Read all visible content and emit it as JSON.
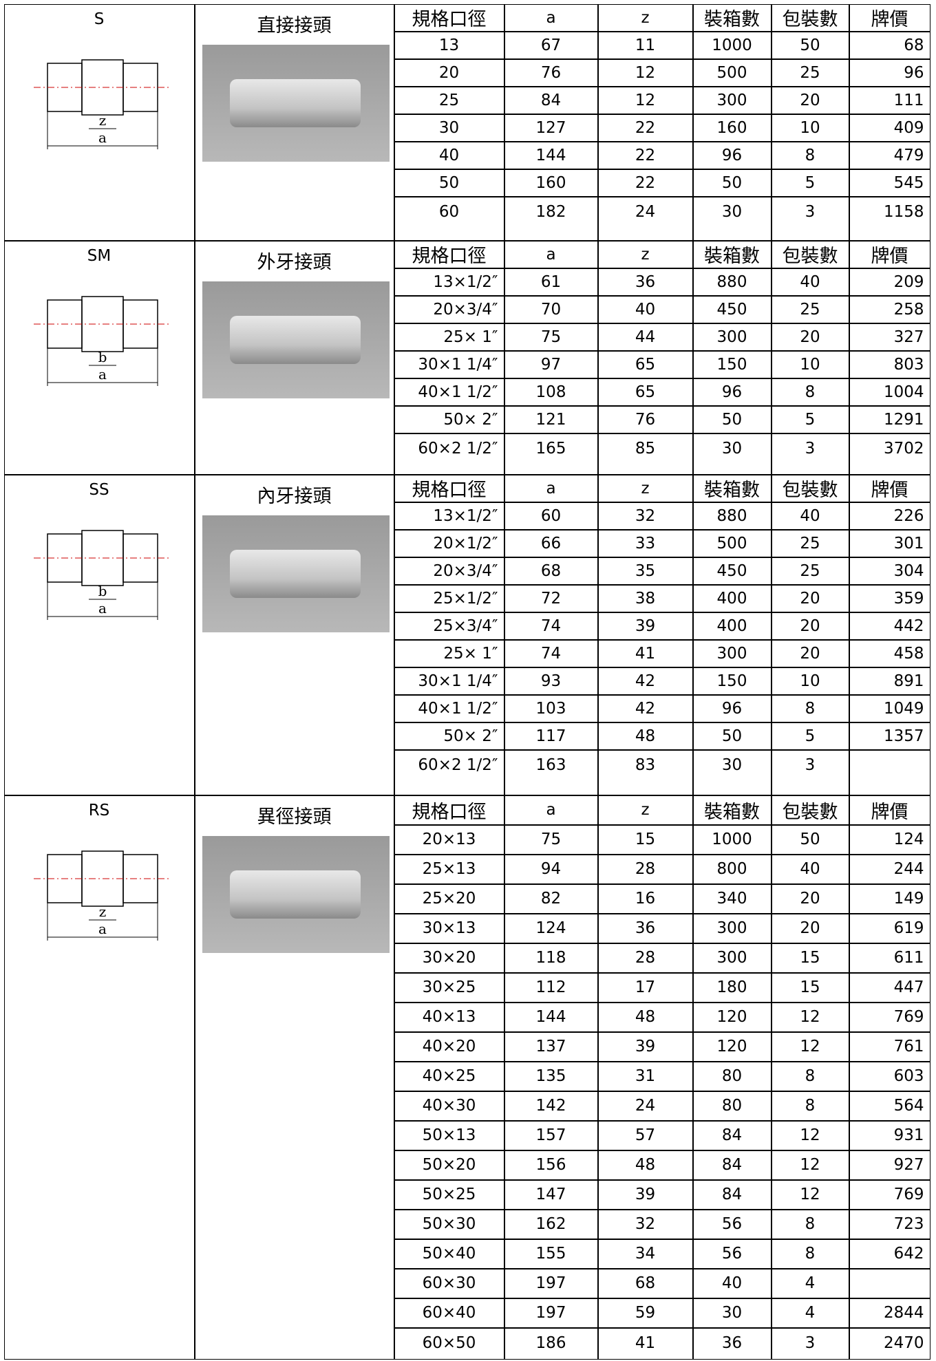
{
  "sections": [
    {
      "code": "S",
      "name": "直接接頭",
      "header": [
        "規格口徑",
        "a",
        "z",
        "裝箱數",
        "包裝數",
        "牌價"
      ],
      "drawing_labels": [
        "z",
        "a"
      ],
      "rows": [
        [
          "13",
          67,
          11,
          1000,
          50,
          68
        ],
        [
          "20",
          76,
          12,
          500,
          25,
          96
        ],
        [
          "25",
          84,
          12,
          300,
          20,
          111
        ],
        [
          "30",
          127,
          22,
          160,
          10,
          409
        ],
        [
          "40",
          144,
          22,
          96,
          8,
          479
        ],
        [
          "50",
          160,
          22,
          50,
          5,
          545
        ],
        [
          "60",
          182,
          24,
          30,
          3,
          1158
        ]
      ]
    },
    {
      "code": "SM",
      "name": "外牙接頭",
      "header": [
        "規格口徑",
        "a",
        "z",
        "裝箱數",
        "包裝數",
        "牌價"
      ],
      "drawing_labels": [
        "b",
        "a"
      ],
      "rows": [
        [
          "13×1/2″",
          61,
          36,
          880,
          40,
          209
        ],
        [
          "20×3/4″",
          70,
          40,
          450,
          25,
          258
        ],
        [
          "25× 1″",
          75,
          44,
          300,
          20,
          327
        ],
        [
          "30×1 1/4″",
          97,
          65,
          150,
          10,
          803
        ],
        [
          "40×1 1/2″",
          108,
          65,
          96,
          8,
          1004
        ],
        [
          "50× 2″",
          121,
          76,
          50,
          5,
          1291
        ],
        [
          "60×2 1/2″",
          165,
          85,
          30,
          3,
          3702
        ]
      ]
    },
    {
      "code": "SS",
      "name": "內牙接頭",
      "header": [
        "規格口徑",
        "a",
        "z",
        "裝箱數",
        "包裝數",
        "牌價"
      ],
      "drawing_labels": [
        "b",
        "a"
      ],
      "rows": [
        [
          "13×1/2″",
          60,
          32,
          880,
          40,
          226
        ],
        [
          "20×1/2″",
          66,
          33,
          500,
          25,
          301
        ],
        [
          "20×3/4″",
          68,
          35,
          450,
          25,
          304
        ],
        [
          "25×1/2″",
          72,
          38,
          400,
          20,
          359
        ],
        [
          "25×3/4″",
          74,
          39,
          400,
          20,
          442
        ],
        [
          "25× 1″",
          74,
          41,
          300,
          20,
          458
        ],
        [
          "30×1 1/4″",
          93,
          42,
          150,
          10,
          891
        ],
        [
          "40×1 1/2″",
          103,
          42,
          96,
          8,
          1049
        ],
        [
          "50× 2″",
          117,
          48,
          50,
          5,
          1357
        ],
        [
          "60×2 1/2″",
          163,
          83,
          30,
          3,
          null
        ]
      ]
    },
    {
      "code": "RS",
      "name": "異徑接頭",
      "header": [
        "規格口徑",
        "a",
        "z",
        "裝箱數",
        "包裝數",
        "牌價"
      ],
      "drawing_labels": [
        "z",
        "a"
      ],
      "rows": [
        [
          "20×13",
          75,
          15,
          1000,
          50,
          124
        ],
        [
          "25×13",
          94,
          28,
          800,
          40,
          244
        ],
        [
          "25×20",
          82,
          16,
          340,
          20,
          149
        ],
        [
          "30×13",
          124,
          36,
          300,
          20,
          619
        ],
        [
          "30×20",
          118,
          28,
          300,
          15,
          611
        ],
        [
          "30×25",
          112,
          17,
          180,
          15,
          447
        ],
        [
          "40×13",
          144,
          48,
          120,
          12,
          769
        ],
        [
          "40×20",
          137,
          39,
          120,
          12,
          761
        ],
        [
          "40×25",
          135,
          31,
          80,
          8,
          603
        ],
        [
          "40×30",
          142,
          24,
          80,
          8,
          564
        ],
        [
          "50×13",
          157,
          57,
          84,
          12,
          931
        ],
        [
          "50×20",
          156,
          48,
          84,
          12,
          927
        ],
        [
          "50×25",
          147,
          39,
          84,
          12,
          769
        ],
        [
          "50×30",
          162,
          32,
          56,
          8,
          723
        ],
        [
          "50×40",
          155,
          34,
          56,
          8,
          642
        ],
        [
          "60×30",
          197,
          68,
          40,
          4,
          null
        ],
        [
          "60×40",
          197,
          59,
          30,
          4,
          2844
        ],
        [
          "60×50",
          186,
          41,
          36,
          3,
          2470
        ]
      ]
    }
  ]
}
